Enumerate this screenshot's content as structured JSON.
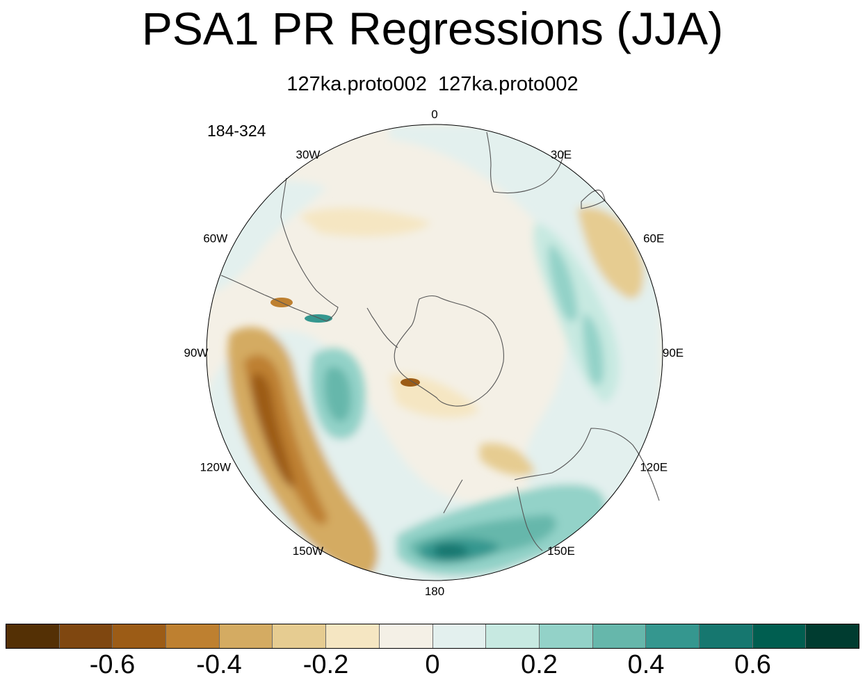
{
  "title": "PSA1 PR Regressions (JJA)",
  "subtitle": "127ka.proto002  127ka.proto002",
  "year_range": "184-324",
  "map": {
    "projection": "south-polar-stereographic",
    "variable": "PR regression",
    "longitude_labels": [
      {
        "name": "lon-label-0",
        "text": "0"
      },
      {
        "name": "lon-label-30e",
        "text": "30E"
      },
      {
        "name": "lon-label-60e",
        "text": "60E"
      },
      {
        "name": "lon-label-90e",
        "text": "90E"
      },
      {
        "name": "lon-label-120e",
        "text": "120E"
      },
      {
        "name": "lon-label-150e",
        "text": "150E"
      },
      {
        "name": "lon-label-180",
        "text": "180"
      },
      {
        "name": "lon-label-150w",
        "text": "150W"
      },
      {
        "name": "lon-label-120w",
        "text": "120W"
      },
      {
        "name": "lon-label-90w",
        "text": "90W"
      },
      {
        "name": "lon-label-60w",
        "text": "60W"
      },
      {
        "name": "lon-label-30w",
        "text": "30W"
      }
    ]
  },
  "colorbar": {
    "colors": [
      "#543005",
      "#7f4710",
      "#9c5c16",
      "#be8030",
      "#d4ab62",
      "#e6cc91",
      "#f5e6c2",
      "#f4f0e6",
      "#e3f0ee",
      "#c7e9e1",
      "#93d2c8",
      "#66b7ab",
      "#35978f",
      "#16776f",
      "#005e50",
      "#003c30"
    ],
    "labels": [
      "-0.6",
      "-0.4",
      "-0.2",
      "0",
      "0.2",
      "0.4",
      "0.6"
    ]
  }
}
